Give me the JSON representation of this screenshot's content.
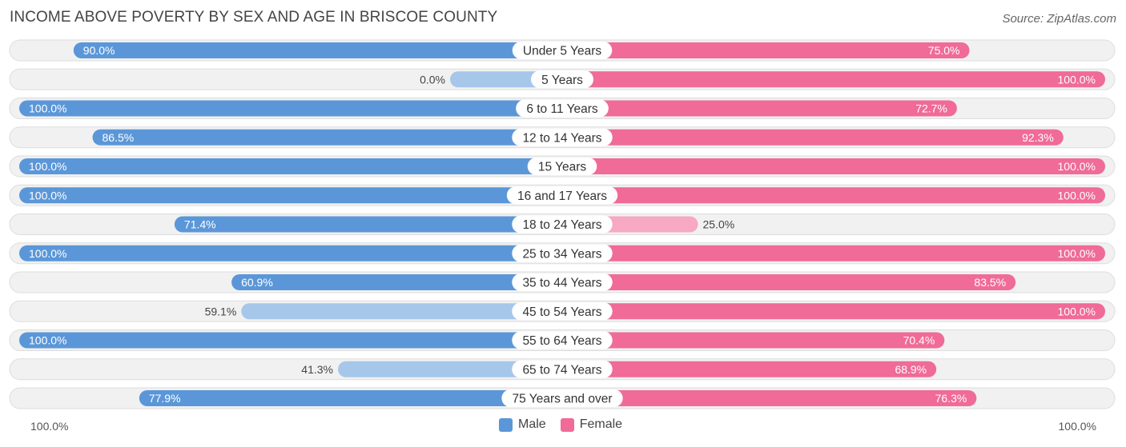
{
  "title": "INCOME ABOVE POVERTY BY SEX AND AGE IN BRISCOE COUNTY",
  "source": "Source: ZipAtlas.com",
  "colors": {
    "male": "#5b97d8",
    "male_light": "#a7c7ea",
    "female": "#f06b97",
    "female_light": "#f7a8c2",
    "track": "#f1f1f1",
    "track_border": "#dddddd"
  },
  "legend": {
    "male_label": "Male",
    "female_label": "Female",
    "axis_left": "100.0%",
    "axis_right": "100.0%"
  },
  "chart_data": {
    "type": "bar",
    "orientation": "horizontal-diverging",
    "title": "INCOME ABOVE POVERTY BY SEX AND AGE IN BRISCOE COUNTY",
    "categories": [
      "Under 5 Years",
      "5 Years",
      "6 to 11 Years",
      "12 to 14 Years",
      "15 Years",
      "16 and 17 Years",
      "18 to 24 Years",
      "25 to 34 Years",
      "35 to 44 Years",
      "45 to 54 Years",
      "55 to 64 Years",
      "65 to 74 Years",
      "75 Years and over"
    ],
    "series": [
      {
        "name": "Male",
        "values": [
          90.0,
          0.0,
          100.0,
          86.5,
          100.0,
          100.0,
          71.4,
          100.0,
          60.9,
          59.1,
          100.0,
          41.3,
          77.9
        ],
        "labels": [
          "90.0%",
          "0.0%",
          "100.0%",
          "86.5%",
          "100.0%",
          "100.0%",
          "71.4%",
          "100.0%",
          "60.9%",
          "59.1%",
          "100.0%",
          "41.3%",
          "77.9%"
        ]
      },
      {
        "name": "Female",
        "values": [
          75.0,
          100.0,
          72.7,
          92.3,
          100.0,
          100.0,
          25.0,
          100.0,
          83.5,
          100.0,
          70.4,
          68.9,
          76.3
        ],
        "labels": [
          "75.0%",
          "100.0%",
          "72.7%",
          "92.3%",
          "100.0%",
          "100.0%",
          "25.0%",
          "100.0%",
          "83.5%",
          "100.0%",
          "70.4%",
          "68.9%",
          "76.3%"
        ]
      }
    ],
    "xlim": [
      -100,
      100
    ],
    "legend_position": "bottom-center"
  }
}
